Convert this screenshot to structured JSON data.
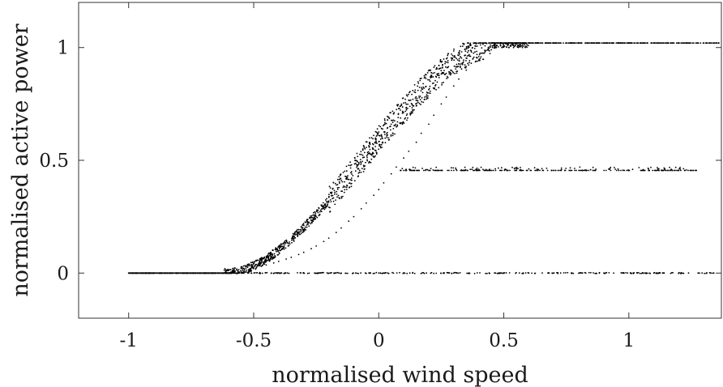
{
  "chart_data": {
    "type": "scatter",
    "title": "",
    "xlabel": "normalised wind speed",
    "ylabel": "normalised active power",
    "xlim": [
      -1.2,
      1.37
    ],
    "ylim": [
      -0.2,
      1.2
    ],
    "x_ticks": [
      -1,
      -0.5,
      0,
      0.5,
      1
    ],
    "x_tick_labels": [
      "-1",
      "-0.5",
      "0",
      "0.5",
      "1"
    ],
    "y_ticks": [
      0,
      0.5,
      1
    ],
    "y_tick_labels": [
      "0",
      "0.5",
      "1"
    ],
    "grid": false,
    "point_color": "#000000",
    "series": [
      {
        "values_description_points": [
          [
            -1.0,
            0.0
          ],
          [
            -0.95,
            0.0
          ],
          [
            -0.9,
            0.0
          ],
          [
            -0.85,
            0.0
          ],
          [
            -0.8,
            0.0
          ],
          [
            -0.75,
            0.0
          ],
          [
            -0.7,
            0.0
          ],
          [
            -0.65,
            0.0
          ],
          [
            -0.6,
            0.001
          ],
          [
            -0.58,
            0.003
          ],
          [
            -0.55,
            0.008
          ],
          [
            -0.52,
            0.015
          ],
          [
            -0.5,
            0.022
          ],
          [
            -0.47,
            0.03
          ],
          [
            -0.45,
            0.036
          ],
          [
            -0.42,
            0.045
          ],
          [
            -0.4,
            0.052
          ],
          [
            -0.37,
            0.062
          ],
          [
            -0.35,
            0.07
          ],
          [
            -0.32,
            0.082
          ],
          [
            -0.3,
            0.092
          ],
          [
            -0.27,
            0.108
          ],
          [
            -0.25,
            0.12
          ],
          [
            -0.22,
            0.14
          ],
          [
            -0.2,
            0.155
          ],
          [
            -0.17,
            0.18
          ],
          [
            -0.15,
            0.2
          ],
          [
            -0.12,
            0.23
          ],
          [
            -0.1,
            0.25
          ],
          [
            -0.07,
            0.285
          ],
          [
            -0.05,
            0.31
          ],
          [
            -0.02,
            0.345
          ],
          [
            0.0,
            0.37
          ],
          [
            0.02,
            0.4
          ],
          [
            0.05,
            0.44
          ],
          [
            0.07,
            0.47
          ],
          [
            0.1,
            0.51
          ],
          [
            0.12,
            0.54
          ],
          [
            0.15,
            0.58
          ],
          [
            0.17,
            0.62
          ],
          [
            0.2,
            0.66
          ],
          [
            0.22,
            0.7
          ],
          [
            0.25,
            0.75
          ],
          [
            0.27,
            0.78
          ],
          [
            0.3,
            0.83
          ],
          [
            0.32,
            0.86
          ],
          [
            0.35,
            0.9
          ],
          [
            0.37,
            0.93
          ],
          [
            0.4,
            0.96
          ],
          [
            0.42,
            0.975
          ],
          [
            0.45,
            0.99
          ],
          [
            0.47,
            1.0
          ],
          [
            0.5,
            1.01
          ],
          [
            0.55,
            1.015
          ],
          [
            0.6,
            1.02
          ],
          [
            0.7,
            1.02
          ],
          [
            0.8,
            1.02
          ],
          [
            0.85,
            1.02
          ],
          [
            0.9,
            1.02
          ],
          [
            1.0,
            1.02
          ],
          [
            1.1,
            1.02
          ],
          [
            1.2,
            1.02
          ],
          [
            1.3,
            1.02
          ],
          [
            1.36,
            1.02
          ],
          [
            0.1,
            0.455
          ],
          [
            0.2,
            0.455
          ],
          [
            0.4,
            0.46
          ],
          [
            0.6,
            0.462
          ],
          [
            0.8,
            0.455
          ],
          [
            1.0,
            0.455
          ],
          [
            1.2,
            0.455
          ],
          [
            1.27,
            0.455
          ],
          [
            -0.3,
            0.0
          ],
          [
            0.0,
            0.0
          ],
          [
            0.3,
            0.0
          ],
          [
            0.6,
            0.0
          ],
          [
            0.9,
            0.0
          ],
          [
            1.1,
            0.0
          ],
          [
            1.34,
            0.0
          ]
        ]
      }
    ]
  }
}
